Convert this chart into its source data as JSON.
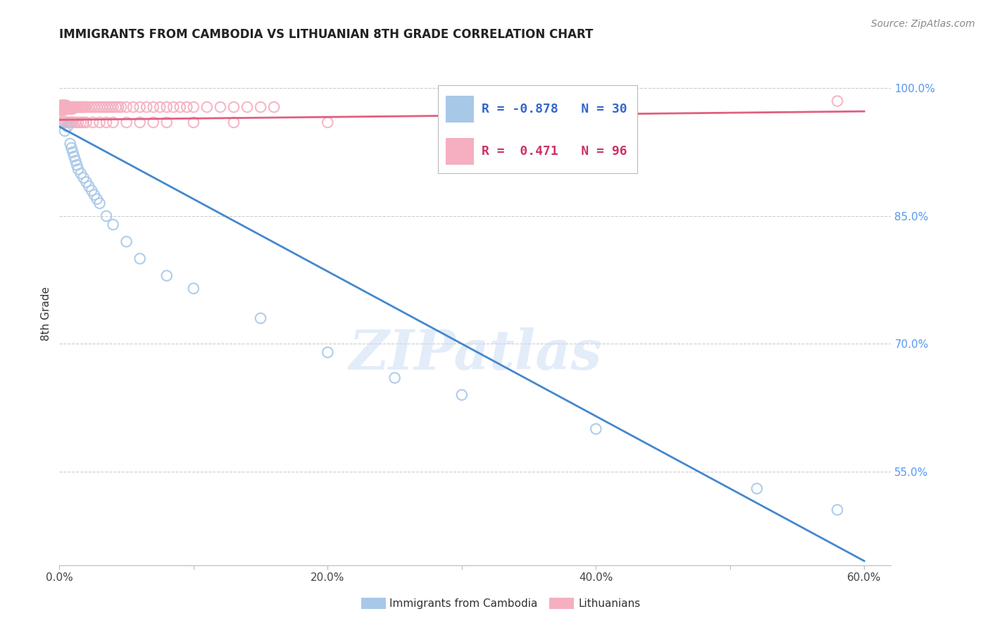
{
  "title": "IMMIGRANTS FROM CAMBODIA VS LITHUANIAN 8TH GRADE CORRELATION CHART",
  "source_text": "Source: ZipAtlas.com",
  "ylabel": "8th Grade",
  "legend_label1": "Immigrants from Cambodia",
  "legend_label2": "Lithuanians",
  "R1": -0.878,
  "N1": 30,
  "R2": 0.471,
  "N2": 96,
  "xlim": [
    0.0,
    0.62
  ],
  "ylim": [
    0.44,
    1.03
  ],
  "xtick_labels": [
    "0.0%",
    "",
    "20.0%",
    "",
    "40.0%",
    "",
    "60.0%"
  ],
  "xtick_vals": [
    0.0,
    0.1,
    0.2,
    0.3,
    0.4,
    0.5,
    0.6
  ],
  "ytick_labels": [
    "55.0%",
    "70.0%",
    "85.0%",
    "100.0%"
  ],
  "ytick_vals": [
    0.55,
    0.7,
    0.85,
    1.0
  ],
  "grid_color": "#cccccc",
  "blue_color": "#a8c8e8",
  "pink_color": "#f5afc0",
  "blue_line_color": "#4488cc",
  "pink_line_color": "#e06080",
  "watermark_text": "ZIPatlas",
  "blue_line_x0": 0.0,
  "blue_line_y0": 0.955,
  "blue_line_x1": 0.6,
  "blue_line_y1": 0.445,
  "pink_line_x0": 0.0,
  "pink_line_y0": 0.963,
  "pink_line_x1": 0.6,
  "pink_line_y1": 0.973,
  "blue_dots_x": [
    0.004,
    0.006,
    0.008,
    0.009,
    0.01,
    0.011,
    0.012,
    0.013,
    0.014,
    0.016,
    0.018,
    0.02,
    0.022,
    0.024,
    0.026,
    0.028,
    0.03,
    0.035,
    0.04,
    0.05,
    0.06,
    0.08,
    0.1,
    0.15,
    0.2,
    0.25,
    0.3,
    0.4,
    0.52,
    0.58
  ],
  "blue_dots_y": [
    0.95,
    0.955,
    0.935,
    0.93,
    0.925,
    0.92,
    0.915,
    0.91,
    0.905,
    0.9,
    0.895,
    0.89,
    0.885,
    0.88,
    0.875,
    0.87,
    0.865,
    0.85,
    0.84,
    0.82,
    0.8,
    0.78,
    0.765,
    0.73,
    0.69,
    0.66,
    0.64,
    0.6,
    0.53,
    0.505
  ],
  "pink_dots_x": [
    0.001,
    0.001,
    0.001,
    0.001,
    0.002,
    0.002,
    0.002,
    0.002,
    0.003,
    0.003,
    0.003,
    0.003,
    0.004,
    0.004,
    0.004,
    0.005,
    0.005,
    0.005,
    0.006,
    0.006,
    0.007,
    0.007,
    0.008,
    0.008,
    0.009,
    0.009,
    0.01,
    0.01,
    0.011,
    0.012,
    0.013,
    0.014,
    0.015,
    0.016,
    0.017,
    0.018,
    0.019,
    0.02,
    0.022,
    0.024,
    0.026,
    0.028,
    0.03,
    0.032,
    0.034,
    0.036,
    0.038,
    0.04,
    0.042,
    0.044,
    0.046,
    0.05,
    0.055,
    0.06,
    0.065,
    0.07,
    0.075,
    0.08,
    0.085,
    0.09,
    0.095,
    0.1,
    0.11,
    0.12,
    0.13,
    0.14,
    0.15,
    0.16,
    0.001,
    0.002,
    0.003,
    0.004,
    0.005,
    0.006,
    0.007,
    0.008,
    0.009,
    0.01,
    0.012,
    0.014,
    0.016,
    0.018,
    0.02,
    0.025,
    0.03,
    0.035,
    0.04,
    0.05,
    0.06,
    0.07,
    0.08,
    0.1,
    0.13,
    0.2,
    0.35,
    0.58
  ],
  "pink_dots_y": [
    0.98,
    0.978,
    0.976,
    0.974,
    0.98,
    0.978,
    0.976,
    0.974,
    0.98,
    0.978,
    0.976,
    0.974,
    0.98,
    0.978,
    0.976,
    0.98,
    0.978,
    0.976,
    0.978,
    0.976,
    0.978,
    0.976,
    0.978,
    0.976,
    0.978,
    0.976,
    0.978,
    0.976,
    0.978,
    0.978,
    0.978,
    0.978,
    0.978,
    0.978,
    0.978,
    0.978,
    0.978,
    0.978,
    0.978,
    0.978,
    0.978,
    0.978,
    0.978,
    0.978,
    0.978,
    0.978,
    0.978,
    0.978,
    0.978,
    0.978,
    0.978,
    0.978,
    0.978,
    0.978,
    0.978,
    0.978,
    0.978,
    0.978,
    0.978,
    0.978,
    0.978,
    0.978,
    0.978,
    0.978,
    0.978,
    0.978,
    0.978,
    0.978,
    0.96,
    0.96,
    0.96,
    0.96,
    0.96,
    0.96,
    0.96,
    0.96,
    0.96,
    0.96,
    0.96,
    0.96,
    0.96,
    0.96,
    0.96,
    0.96,
    0.96,
    0.96,
    0.96,
    0.96,
    0.96,
    0.96,
    0.96,
    0.96,
    0.96,
    0.96,
    0.975,
    0.985
  ]
}
